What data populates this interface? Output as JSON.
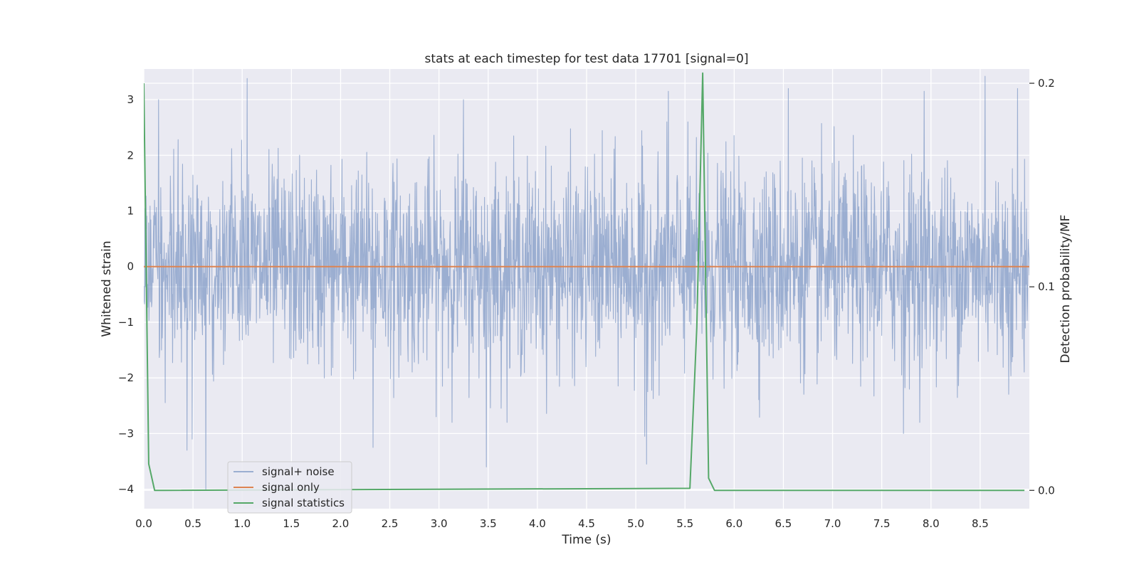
{
  "chart_data": {
    "type": "line",
    "title": "stats at each timestep for test data 17701 [signal=0]",
    "xlabel": "Time (s)",
    "ylabel": "Whitened strain",
    "y2label": "Detection probability/MF",
    "xlim": [
      0.0,
      9.0
    ],
    "ylim": [
      -4.35,
      3.55
    ],
    "y2lim": [
      -0.009,
      0.207
    ],
    "x_ticks": [
      "0.0",
      "0.5",
      "1.0",
      "1.5",
      "2.0",
      "2.5",
      "3.0",
      "3.5",
      "4.0",
      "4.5",
      "5.0",
      "5.5",
      "6.0",
      "6.5",
      "7.0",
      "7.5",
      "8.0",
      "8.5"
    ],
    "y_ticks": [
      "3",
      "2",
      "1",
      "0",
      "−1",
      "−2",
      "−3",
      "−4"
    ],
    "y2_ticks": [
      "0.2",
      "0.1",
      "0.0"
    ],
    "grid": true,
    "legend_position": "lower-left",
    "series": [
      {
        "name": "signal+ noise",
        "axis": "left",
        "color": "#4c72b0",
        "opacity": 0.5,
        "style": "dense noise",
        "std": 0.9,
        "peaks": [
          {
            "x": 1.05,
            "y": 3.38
          },
          {
            "x": 5.33,
            "y": 3.15
          },
          {
            "x": 6.55,
            "y": 3.2
          },
          {
            "x": 8.55,
            "y": 3.42
          },
          {
            "x": 8.88,
            "y": 3.2
          },
          {
            "x": 3.25,
            "y": 3.0
          },
          {
            "x": 7.93,
            "y": 3.15
          },
          {
            "x": 0.15,
            "y": 3.0
          },
          {
            "x": 0.63,
            "y": -4.0
          },
          {
            "x": 3.48,
            "y": -3.6
          },
          {
            "x": 5.11,
            "y": -3.55
          },
          {
            "x": 2.33,
            "y": -3.25
          },
          {
            "x": 0.44,
            "y": -3.3
          },
          {
            "x": 7.72,
            "y": -3.0
          },
          {
            "x": 0.49,
            "y": -3.1
          },
          {
            "x": 5.09,
            "y": -3.05
          }
        ]
      },
      {
        "name": "signal only",
        "axis": "left",
        "color": "#dd8452",
        "x": [
          0.0,
          9.0
        ],
        "y": [
          0.0,
          0.0
        ]
      },
      {
        "name": "signal statistics",
        "axis": "right",
        "color": "#55a868",
        "x": [
          0.0,
          0.05,
          0.11,
          0.2,
          5.55,
          5.62,
          5.68,
          5.74,
          5.8,
          5.85,
          8.95
        ],
        "y": [
          0.2,
          0.013,
          0.0,
          0.0,
          0.001,
          0.08,
          0.205,
          0.006,
          0.0,
          0.0,
          0.0
        ]
      }
    ]
  }
}
